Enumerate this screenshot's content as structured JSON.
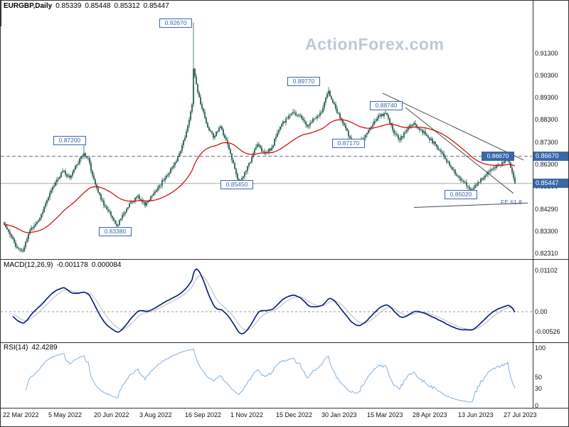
{
  "watermark": "ActionForex.com",
  "header": {
    "symbol_timeframe": "EURGBP,Daily",
    "open": "0.85339",
    "high": "0.85448",
    "low": "0.85312",
    "close": "0.85447"
  },
  "chart_data": {
    "type": "candlestick",
    "symbol": "EURGBP",
    "timeframe": "Daily",
    "x_axis": {
      "labels": [
        "22 Mar 2022",
        "5 May 2022",
        "20 Jun 2022",
        "3 Aug 2022",
        "16 Sep 2022",
        "1 Nov 2022",
        "15 Dec 2022",
        "30 Jan 2023",
        "15 Mar 2023",
        "28 Apr 2023",
        "13 Jun 2023",
        "27 Jul 2023"
      ],
      "candles_per_tick": 32,
      "total_candles": 360
    },
    "y_axis": {
      "range": [
        0.8215,
        0.932
      ],
      "ticks": [
        {
          "text": "0.91300",
          "value": 0.913
        },
        {
          "text": "0.90300",
          "value": 0.903
        },
        {
          "text": "0.89300",
          "value": 0.893
        },
        {
          "text": "0.88300",
          "value": 0.883
        },
        {
          "text": "0.87300",
          "value": 0.873
        },
        {
          "text": "0.86300",
          "value": 0.863
        },
        {
          "text": "0.85300",
          "value": 0.853
        },
        {
          "text": "0.84290",
          "value": 0.8429
        },
        {
          "text": "0.83300",
          "value": 0.833
        },
        {
          "text": "0.82310",
          "value": 0.8231
        }
      ],
      "highlight_boxes": [
        {
          "text": "0.86670",
          "value": 0.8667
        },
        {
          "text": "0.85447",
          "value": 0.85447
        }
      ]
    },
    "price_path_anchors": [
      [
        0,
        0.836
      ],
      [
        4,
        0.8315
      ],
      [
        9,
        0.8255
      ],
      [
        13,
        0.824
      ],
      [
        18,
        0.8335
      ],
      [
        25,
        0.839
      ],
      [
        30,
        0.847
      ],
      [
        36,
        0.855
      ],
      [
        41,
        0.86
      ],
      [
        46,
        0.857
      ],
      [
        51,
        0.863
      ],
      [
        56,
        0.868
      ],
      [
        59,
        0.866
      ],
      [
        61,
        0.86
      ],
      [
        66,
        0.8505
      ],
      [
        71,
        0.844
      ],
      [
        76,
        0.839
      ],
      [
        79,
        0.8355
      ],
      [
        84,
        0.841
      ],
      [
        89,
        0.846
      ],
      [
        94,
        0.849
      ],
      [
        99,
        0.8445
      ],
      [
        104,
        0.849
      ],
      [
        109,
        0.8535
      ],
      [
        114,
        0.858
      ],
      [
        119,
        0.8625
      ],
      [
        124,
        0.869
      ],
      [
        127,
        0.875
      ],
      [
        130,
        0.883
      ],
      [
        132,
        0.89
      ],
      [
        133,
        0.906
      ],
      [
        135,
        0.899
      ],
      [
        138,
        0.89
      ],
      [
        142,
        0.8815
      ],
      [
        147,
        0.875
      ],
      [
        152,
        0.88
      ],
      [
        157,
        0.872
      ],
      [
        162,
        0.861
      ],
      [
        165,
        0.855
      ],
      [
        170,
        0.86
      ],
      [
        175,
        0.868
      ],
      [
        178,
        0.872
      ],
      [
        183,
        0.868
      ],
      [
        188,
        0.8705
      ],
      [
        193,
        0.8785
      ],
      [
        198,
        0.8835
      ],
      [
        203,
        0.8865
      ],
      [
        208,
        0.885
      ],
      [
        213,
        0.88
      ],
      [
        218,
        0.8835
      ],
      [
        223,
        0.8865
      ],
      [
        226,
        0.893
      ],
      [
        228,
        0.896
      ],
      [
        233,
        0.888
      ],
      [
        238,
        0.8815
      ],
      [
        243,
        0.875
      ],
      [
        248,
        0.872
      ],
      [
        253,
        0.875
      ],
      [
        258,
        0.88
      ],
      [
        263,
        0.885
      ],
      [
        268,
        0.886
      ],
      [
        273,
        0.8785
      ],
      [
        278,
        0.874
      ],
      [
        283,
        0.8785
      ],
      [
        288,
        0.8815
      ],
      [
        293,
        0.8785
      ],
      [
        298,
        0.875
      ],
      [
        303,
        0.872
      ],
      [
        308,
        0.868
      ],
      [
        313,
        0.8625
      ],
      [
        318,
        0.858
      ],
      [
        323,
        0.855
      ],
      [
        328,
        0.8515
      ],
      [
        333,
        0.855
      ],
      [
        338,
        0.858
      ],
      [
        343,
        0.861
      ],
      [
        348,
        0.8625
      ],
      [
        352,
        0.865
      ],
      [
        354,
        0.866
      ],
      [
        356,
        0.8615
      ],
      [
        358,
        0.857
      ],
      [
        359,
        0.85447
      ]
    ],
    "key_levels": [
      {
        "label": "0.92670",
        "index": 133,
        "price": 0.9267,
        "kind": "high",
        "style": "outline",
        "ox": -26,
        "oy": 0
      },
      {
        "label": "0.87200",
        "index": 56,
        "price": 0.872,
        "kind": "high",
        "style": "outline",
        "ox": -21,
        "oy": -6
      },
      {
        "label": "0.83380",
        "index": 79,
        "price": 0.8338,
        "kind": "low",
        "style": "outline",
        "ox": -3,
        "oy": 2
      },
      {
        "label": "0.85450",
        "index": 165,
        "price": 0.8545,
        "kind": "low",
        "style": "outline",
        "ox": -4,
        "oy": 1
      },
      {
        "label": "0.89770",
        "index": 228,
        "price": 0.8977,
        "kind": "high",
        "style": "outline",
        "ox": -36,
        "oy": -8
      },
      {
        "label": "0.88740",
        "index": 268,
        "price": 0.8874,
        "kind": "high",
        "style": "outline",
        "ox": 0,
        "oy": -7
      },
      {
        "label": "0.87170",
        "index": 248,
        "price": 0.8717,
        "kind": "low",
        "style": "outline",
        "ox": -13,
        "oy": -3
      },
      {
        "label": "0.85020",
        "index": 328,
        "price": 0.8502,
        "kind": "low",
        "style": "outline",
        "ox": -15,
        "oy": 2
      },
      {
        "label": "0.86670",
        "index": 354,
        "price": 0.8667,
        "kind": "high",
        "style": "filled",
        "ox": -15,
        "oy": -1
      }
    ],
    "levels_lines": {
      "dashed_resistance": 0.8667,
      "current_price": 0.85447
    },
    "trendlines": [
      {
        "from": [
          266,
          0.895
        ],
        "to": [
          365,
          0.865
        ]
      },
      {
        "from": [
          282,
          0.8886
        ],
        "to": [
          358,
          0.85
        ]
      }
    ],
    "fib_line": {
      "from": [
        288,
        0.8437
      ],
      "to": [
        368,
        0.8457
      ],
      "label": "FE 61.8",
      "label_at": [
        349,
        0.846
      ]
    },
    "moving_average_period": 55,
    "indicators": {
      "macd": {
        "label": "MACD(12,26,9)",
        "value_main": "-0.001178",
        "value_signal": "0.000084",
        "fast": 12,
        "slow": 26,
        "signal": 9,
        "axis_ticks": [
          {
            "text": "0.01102",
            "value": 0.01102
          },
          {
            "text": "0.00",
            "value": 0
          },
          {
            "text": "-0.00526",
            "value": -0.00526
          }
        ]
      },
      "rsi": {
        "label": "RSI(14)",
        "value": "42.4289",
        "period": 14,
        "axis_ticks": [
          {
            "text": "100",
            "value": 100
          },
          {
            "text": "50",
            "value": 50
          },
          {
            "text": "30",
            "value": 30
          },
          {
            "text": "0",
            "value": 0
          }
        ]
      }
    },
    "colors": {
      "candle": "#0e4b3e",
      "ma": "#d40000",
      "macd_line": "#001a7a",
      "macd_signal": "#b9b9b9",
      "rsi_line": "#7fb0dc",
      "level_box": "#3a67a8",
      "watermark": "#bcc9d9",
      "trendline": "#4a4a4a",
      "dashed_level": "#667788",
      "current_line": "#aaaaaa",
      "axis_text": "#111111"
    }
  }
}
